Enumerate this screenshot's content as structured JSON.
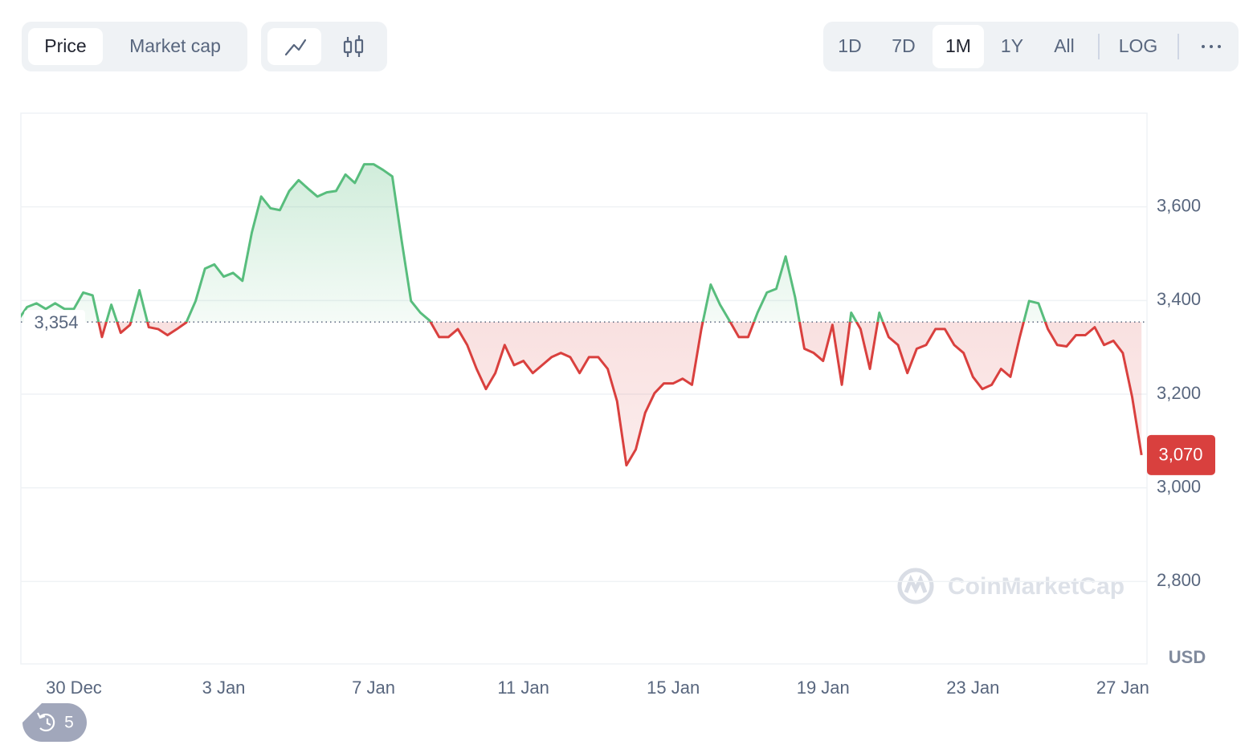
{
  "toolbar": {
    "tabs": [
      "Price",
      "Market cap"
    ],
    "selected_tab": "Price",
    "ranges": [
      "1D",
      "7D",
      "1M",
      "1Y",
      "All"
    ],
    "selected_range": "1M",
    "scale_toggle": "LOG"
  },
  "history_count": 5,
  "watermark": "CoinMarketCap",
  "chart_data": {
    "type": "line",
    "categories": [
      null,
      null,
      null,
      null,
      null,
      null,
      "30 Dec",
      null,
      null,
      null,
      null,
      null,
      null,
      null,
      null,
      null,
      null,
      null,
      null,
      null,
      null,
      null,
      "3 Jan",
      null,
      null,
      null,
      null,
      null,
      null,
      null,
      null,
      null,
      null,
      null,
      null,
      null,
      null,
      null,
      "7 Jan",
      null,
      null,
      null,
      null,
      null,
      null,
      null,
      null,
      null,
      null,
      null,
      null,
      null,
      null,
      null,
      "11 Jan",
      null,
      null,
      null,
      null,
      null,
      null,
      null,
      null,
      null,
      null,
      null,
      null,
      null,
      null,
      null,
      "15 Jan",
      null,
      null,
      null,
      null,
      null,
      null,
      null,
      null,
      null,
      null,
      null,
      null,
      null,
      null,
      null,
      "19 Jan",
      null,
      null,
      null,
      null,
      null,
      null,
      null,
      null,
      null,
      null,
      null,
      null,
      null,
      null,
      null,
      "23 Jan",
      null,
      null,
      null,
      null,
      null,
      null,
      null,
      null,
      null,
      null,
      null,
      null,
      null,
      null,
      null,
      "27 Jan",
      null,
      null
    ],
    "values": [
      3357,
      3386,
      3394,
      3382,
      3394,
      3382,
      3382,
      3417,
      3411,
      3322,
      3391,
      3331,
      3348,
      3422,
      3343,
      3339,
      3326,
      3339,
      3353,
      3399,
      3468,
      3477,
      3451,
      3459,
      3442,
      3545,
      3622,
      3597,
      3593,
      3634,
      3657,
      3639,
      3622,
      3631,
      3634,
      3669,
      3651,
      3691,
      3691,
      3679,
      3665,
      3528,
      3399,
      3374,
      3357,
      3322,
      3322,
      3339,
      3305,
      3254,
      3211,
      3245,
      3305,
      3262,
      3271,
      3245,
      3262,
      3279,
      3288,
      3279,
      3245,
      3279,
      3279,
      3254,
      3185,
      3048,
      3082,
      3160,
      3202,
      3223,
      3223,
      3233,
      3220,
      3339,
      3434,
      3391,
      3357,
      3322,
      3322,
      3374,
      3417,
      3425,
      3494,
      3408,
      3297,
      3288,
      3271,
      3348,
      3220,
      3374,
      3339,
      3254,
      3374,
      3322,
      3305,
      3245,
      3297,
      3305,
      3339,
      3339,
      3305,
      3288,
      3237,
      3211,
      3220,
      3254,
      3237,
      3322,
      3399,
      3394,
      3339,
      3305,
      3302,
      3326,
      3326,
      3343,
      3305,
      3314,
      3288,
      3194,
      3070
    ],
    "ylim": [
      2624,
      3800
    ],
    "yticks": [
      {
        "value": 2800,
        "label": "2,800"
      },
      {
        "value": 3000,
        "label": "3,000"
      },
      {
        "value": 3200,
        "label": "3,200"
      },
      {
        "value": 3400,
        "label": "3,400"
      },
      {
        "value": 3600,
        "label": "3,600"
      }
    ],
    "y_unit": "USD",
    "grid": true,
    "baseline": {
      "value": 3354,
      "label": "3,354"
    },
    "last_price": {
      "value": 3070,
      "label": "3,070"
    },
    "up_color": "#58bd7d",
    "down_color": "#d9403e"
  }
}
